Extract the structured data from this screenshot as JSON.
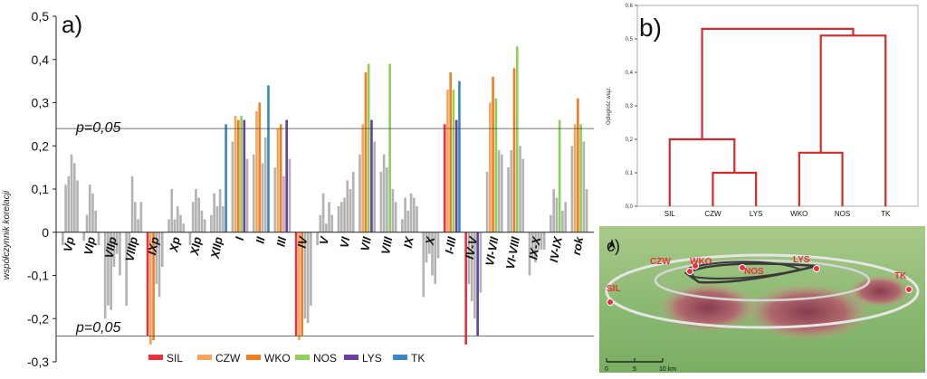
{
  "colors": {
    "SIL": "#e8323c",
    "CZW": "#f5a65b",
    "WKO": "#ef7f22",
    "NOS": "#8fcf5a",
    "LYS": "#6b3fa0",
    "TK": "#3d86c6",
    "grey": "#b3b3b3"
  },
  "chart_data": [
    {
      "type": "bar",
      "panel_label": "a)",
      "ylabel": "współczynnik korelacji",
      "ylim": [
        -0.3,
        0.5
      ],
      "yticks": [
        "0,5",
        "0,4",
        "0,3",
        "0,2",
        "0,1",
        "0",
        "-0,1",
        "-0,2",
        "-0,3"
      ],
      "significance": {
        "label_top": "p=0,05",
        "label_bottom": "p=0,05",
        "values": [
          0.24,
          -0.24
        ]
      },
      "legend": [
        "SIL",
        "CZW",
        "WKO",
        "NOS",
        "LYS",
        "TK"
      ],
      "series_order": [
        "SIL",
        "CZW",
        "WKO",
        "NOS",
        "LYS",
        "TK"
      ],
      "categories": [
        "Vp",
        "VIp",
        "VIIp",
        "VIIIp",
        "IXp",
        "Xp",
        "XIp",
        "XIIp",
        "I",
        "II",
        "III",
        "IV",
        "V",
        "VI",
        "VII",
        "VIII",
        "IX",
        "X",
        "I-III",
        "IV-V",
        "VI-VII",
        "VI-VIII",
        "IX-X",
        "IV-IX",
        "rok"
      ],
      "series": [
        {
          "name": "SIL",
          "values": [
            -0.03,
            -0.02,
            -0.2,
            -0.17,
            -0.24,
            0.03,
            -0.03,
            0.04,
            0.21,
            0.18,
            0.15,
            -0.24,
            -0.03,
            0.06,
            0.18,
            0.14,
            0.03,
            -0.15,
            0.25,
            -0.26,
            0.14,
            0.15,
            -0.1,
            0.04,
            0.2
          ]
        },
        {
          "name": "CZW",
          "values": [
            0.11,
            0.04,
            -0.17,
            -0.04,
            -0.26,
            0.1,
            0.07,
            0.09,
            0.27,
            0.28,
            0.24,
            -0.25,
            0.04,
            0.07,
            0.25,
            0.18,
            0.08,
            -0.07,
            0.33,
            -0.12,
            0.3,
            0.19,
            -0.06,
            0.1,
            0.25
          ]
        },
        {
          "name": "WKO",
          "values": [
            0.13,
            0.11,
            -0.18,
            0.13,
            -0.25,
            0.03,
            0.1,
            0.06,
            0.26,
            0.3,
            0.25,
            -0.24,
            0.09,
            0.08,
            0.37,
            0.15,
            0.05,
            -0.05,
            0.37,
            -0.16,
            0.36,
            0.38,
            -0.07,
            0.08,
            0.31
          ]
        },
        {
          "name": "NOS",
          "values": [
            0.18,
            0.09,
            -0.08,
            0.07,
            -0.12,
            0.06,
            0.08,
            0.1,
            0.27,
            0.16,
            0.13,
            -0.2,
            0.02,
            0.12,
            0.39,
            0.39,
            0.09,
            -0.1,
            0.33,
            -0.2,
            0.31,
            0.43,
            -0.04,
            0.26,
            0.25
          ]
        },
        {
          "name": "LYS",
          "values": [
            0.16,
            0.05,
            -0.05,
            0.03,
            -0.15,
            0.04,
            0.05,
            0.06,
            0.26,
            0.22,
            0.26,
            -0.21,
            0.07,
            0.1,
            0.26,
            0.1,
            0.08,
            -0.12,
            0.26,
            -0.24,
            0.19,
            0.2,
            -0.04,
            0.05,
            0.21
          ]
        },
        {
          "name": "TK",
          "values": [
            0.12,
            -0.03,
            -0.1,
            0.07,
            -0.08,
            0.02,
            0.03,
            0.25,
            0.17,
            0.34,
            0.17,
            -0.17,
            0.04,
            0.14,
            0.21,
            0.07,
            0.06,
            -0.06,
            0.35,
            -0.14,
            0.18,
            0.17,
            -0.04,
            0.07,
            0.1
          ]
        }
      ],
      "highlight_rule": "bars beyond ±0,24 drawn in series colour, others grey"
    },
    {
      "type": "dendrogram",
      "panel_label": "b)",
      "ylabel": "Odległość wiąz.",
      "ylim": [
        0.0,
        0.6
      ],
      "yticks": [
        "0,0",
        "0,1",
        "0,2",
        "0,3",
        "0,4",
        "0,5",
        "0,6"
      ],
      "leaves": [
        "SIL",
        "CZW",
        "LYS",
        "WKO",
        "NOS",
        "TK"
      ],
      "merges": [
        {
          "a": "CZW",
          "b": "LYS",
          "height": 0.1
        },
        {
          "a": "WKO",
          "b": "NOS",
          "height": 0.16
        },
        {
          "a": "SIL",
          "b": "CZW+LYS",
          "height": 0.2
        },
        {
          "a": "WKO+NOS",
          "b": "TK",
          "height": 0.51
        },
        {
          "a": "SIL+CZW+LYS",
          "b": "WKO+NOS+TK",
          "height": 0.53
        }
      ]
    }
  ],
  "panel_c": {
    "panel_label": "c)",
    "stations": [
      "SIL",
      "CZW",
      "WKO",
      "NOS",
      "LYS",
      "TK"
    ],
    "scale_labels": [
      "0",
      "5",
      "10 km"
    ]
  }
}
